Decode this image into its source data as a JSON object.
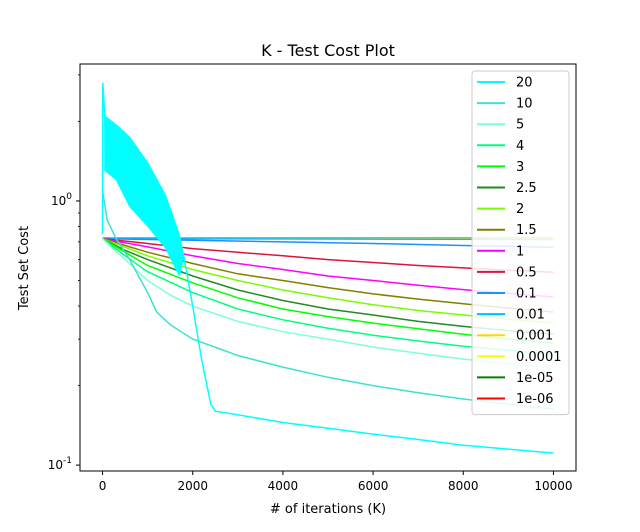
{
  "chart_data": {
    "type": "line",
    "title": "K - Test Cost Plot",
    "xlabel": "# of iterations (K)",
    "ylabel": "Test Set Cost",
    "xlim": [
      -500,
      10500
    ],
    "ylim": [
      0.095,
      3.3
    ],
    "yscale": "log",
    "grid": false,
    "legend_position": "top-right",
    "x_ticks": [
      0,
      2000,
      4000,
      6000,
      8000,
      10000
    ],
    "x_tick_labels": [
      "0",
      "2000",
      "4000",
      "6000",
      "8000",
      "10000"
    ],
    "y_ticks": [
      1.0,
      0.1
    ],
    "y_tick_labels": [
      "10^0",
      "10^-1"
    ],
    "series": [
      {
        "name": "20",
        "color": "#00ffff",
        "osc": true,
        "points": [
          [
            0,
            0.75
          ],
          [
            5,
            2.8
          ],
          [
            50,
            2.1
          ],
          [
            300,
            1.9
          ],
          [
            800,
            1.5
          ],
          [
            1200,
            1.1
          ],
          [
            1600,
            0.8
          ],
          [
            1800,
            0.62
          ],
          [
            2000,
            0.4
          ],
          [
            2200,
            0.25
          ],
          [
            2400,
            0.17
          ],
          [
            2500,
            0.16
          ],
          [
            3000,
            0.155
          ],
          [
            4000,
            0.145
          ],
          [
            5000,
            0.138
          ],
          [
            6000,
            0.131
          ],
          [
            7000,
            0.125
          ],
          [
            8000,
            0.119
          ],
          [
            9000,
            0.115
          ],
          [
            10000,
            0.111
          ]
        ],
        "band_upper": [
          [
            50,
            2.1
          ],
          [
            300,
            1.95
          ],
          [
            600,
            1.75
          ],
          [
            1000,
            1.4
          ],
          [
            1400,
            1.05
          ],
          [
            1700,
            0.75
          ],
          [
            1800,
            0.62
          ]
        ],
        "band_lower": [
          [
            50,
            1.3
          ],
          [
            300,
            1.2
          ],
          [
            600,
            0.95
          ],
          [
            1000,
            0.8
          ],
          [
            1400,
            0.66
          ],
          [
            1700,
            0.52
          ],
          [
            1800,
            0.62
          ]
        ]
      },
      {
        "name": "10",
        "color": "#40e0d0",
        "points": [
          [
            0,
            1.1
          ],
          [
            100,
            0.85
          ],
          [
            300,
            0.72
          ],
          [
            600,
            0.6
          ],
          [
            1000,
            0.45
          ],
          [
            1200,
            0.38
          ],
          [
            1500,
            0.34
          ],
          [
            2000,
            0.3
          ],
          [
            3000,
            0.26
          ],
          [
            4000,
            0.235
          ],
          [
            5000,
            0.215
          ],
          [
            6000,
            0.2
          ],
          [
            7000,
            0.188
          ],
          [
            8000,
            0.178
          ],
          [
            9000,
            0.17
          ],
          [
            10000,
            0.163
          ]
        ]
      },
      {
        "name": "5",
        "color": "#7fffd4",
        "points": [
          [
            0,
            0.72
          ],
          [
            500,
            0.6
          ],
          [
            1000,
            0.5
          ],
          [
            1500,
            0.44
          ],
          [
            2000,
            0.4
          ],
          [
            3000,
            0.35
          ],
          [
            4000,
            0.32
          ],
          [
            5000,
            0.3
          ],
          [
            6000,
            0.28
          ],
          [
            7000,
            0.265
          ],
          [
            8000,
            0.252
          ],
          [
            9000,
            0.242
          ],
          [
            10000,
            0.232
          ]
        ]
      },
      {
        "name": "4",
        "color": "#00ff7f",
        "points": [
          [
            0,
            0.72
          ],
          [
            500,
            0.62
          ],
          [
            1000,
            0.54
          ],
          [
            2000,
            0.45
          ],
          [
            3000,
            0.39
          ],
          [
            4000,
            0.355
          ],
          [
            5000,
            0.33
          ],
          [
            6000,
            0.31
          ],
          [
            7000,
            0.295
          ],
          [
            8000,
            0.282
          ],
          [
            9000,
            0.272
          ],
          [
            10000,
            0.262
          ]
        ]
      },
      {
        "name": "3",
        "color": "#00ff00",
        "points": [
          [
            0,
            0.72
          ],
          [
            500,
            0.64
          ],
          [
            1000,
            0.57
          ],
          [
            2000,
            0.49
          ],
          [
            3000,
            0.43
          ],
          [
            4000,
            0.39
          ],
          [
            5000,
            0.365
          ],
          [
            6000,
            0.345
          ],
          [
            7000,
            0.328
          ],
          [
            8000,
            0.313
          ],
          [
            9000,
            0.3
          ],
          [
            10000,
            0.29
          ]
        ]
      },
      {
        "name": "2.5",
        "color": "#228b22",
        "points": [
          [
            0,
            0.72
          ],
          [
            500,
            0.65
          ],
          [
            1000,
            0.6
          ],
          [
            2000,
            0.52
          ],
          [
            3000,
            0.46
          ],
          [
            4000,
            0.42
          ],
          [
            5000,
            0.39
          ],
          [
            6000,
            0.37
          ],
          [
            7000,
            0.35
          ],
          [
            8000,
            0.335
          ],
          [
            9000,
            0.323
          ],
          [
            10000,
            0.313
          ]
        ]
      },
      {
        "name": "2",
        "color": "#7cfc00",
        "points": [
          [
            0,
            0.72
          ],
          [
            1000,
            0.62
          ],
          [
            2000,
            0.55
          ],
          [
            3000,
            0.5
          ],
          [
            4000,
            0.46
          ],
          [
            5000,
            0.43
          ],
          [
            6000,
            0.405
          ],
          [
            7000,
            0.385
          ],
          [
            8000,
            0.37
          ],
          [
            9000,
            0.357
          ],
          [
            10000,
            0.345
          ]
        ]
      },
      {
        "name": "1.5",
        "color": "#808000",
        "points": [
          [
            0,
            0.72
          ],
          [
            1000,
            0.64
          ],
          [
            2000,
            0.58
          ],
          [
            3000,
            0.53
          ],
          [
            4000,
            0.5
          ],
          [
            5000,
            0.47
          ],
          [
            6000,
            0.445
          ],
          [
            7000,
            0.425
          ],
          [
            8000,
            0.408
          ],
          [
            9000,
            0.393
          ],
          [
            10000,
            0.38
          ]
        ]
      },
      {
        "name": "1",
        "color": "#ff00ff",
        "points": [
          [
            0,
            0.72
          ],
          [
            1000,
            0.67
          ],
          [
            2000,
            0.62
          ],
          [
            3000,
            0.58
          ],
          [
            4000,
            0.55
          ],
          [
            5000,
            0.52
          ],
          [
            6000,
            0.5
          ],
          [
            7000,
            0.48
          ],
          [
            8000,
            0.462
          ],
          [
            9000,
            0.447
          ],
          [
            10000,
            0.433
          ]
        ]
      },
      {
        "name": "0.5",
        "color": "#dc143c",
        "points": [
          [
            0,
            0.72
          ],
          [
            1000,
            0.69
          ],
          [
            2000,
            0.66
          ],
          [
            3000,
            0.64
          ],
          [
            4000,
            0.62
          ],
          [
            5000,
            0.6
          ],
          [
            6000,
            0.585
          ],
          [
            7000,
            0.57
          ],
          [
            8000,
            0.558
          ],
          [
            9000,
            0.547
          ],
          [
            10000,
            0.537
          ]
        ]
      },
      {
        "name": "0.1",
        "color": "#1e90ff",
        "points": [
          [
            0,
            0.72
          ],
          [
            2000,
            0.71
          ],
          [
            4000,
            0.7
          ],
          [
            6000,
            0.69
          ],
          [
            8000,
            0.678
          ],
          [
            10000,
            0.668
          ]
        ]
      },
      {
        "name": "0.01",
        "color": "#00bfff",
        "points": [
          [
            0,
            0.72
          ],
          [
            5000,
            0.718
          ],
          [
            10000,
            0.715
          ]
        ]
      },
      {
        "name": "0.001",
        "color": "#ffd700",
        "points": [
          [
            0,
            0.72
          ],
          [
            10000,
            0.72
          ]
        ]
      },
      {
        "name": "0.0001",
        "color": "#ffff00",
        "points": [
          [
            0,
            0.72
          ],
          [
            10000,
            0.72
          ]
        ]
      },
      {
        "name": "1e-05",
        "color": "#008000",
        "points": [
          [
            0,
            0.72
          ],
          [
            10000,
            0.72
          ]
        ]
      },
      {
        "name": "1e-06",
        "color": "#ff0000",
        "points": [
          [
            0,
            0.722
          ],
          [
            10000,
            0.722
          ]
        ]
      }
    ]
  }
}
